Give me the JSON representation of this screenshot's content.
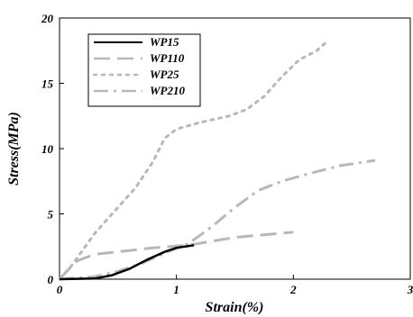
{
  "chart_data": {
    "type": "line",
    "title": "",
    "xlabel": "Strain(%)",
    "ylabel": "Stress(MPa)",
    "xlim": [
      0,
      3
    ],
    "ylim": [
      0,
      20
    ],
    "x_ticks": [
      0,
      1,
      2,
      3
    ],
    "y_ticks": [
      0,
      5,
      10,
      15,
      20
    ],
    "x_tick_labels": [
      "0",
      "1",
      "2",
      "3"
    ],
    "y_tick_labels": [
      "0",
      "5",
      "10",
      "15",
      "20"
    ],
    "grid": false,
    "legend_position": "top-left",
    "series": [
      {
        "name": "WP15",
        "color": "#000000",
        "dash": "solid",
        "points": [
          [
            0,
            0
          ],
          [
            0.3,
            0.05
          ],
          [
            0.45,
            0.3
          ],
          [
            0.6,
            0.8
          ],
          [
            0.75,
            1.5
          ],
          [
            0.9,
            2.1
          ],
          [
            1.0,
            2.4
          ],
          [
            1.15,
            2.6
          ]
        ]
      },
      {
        "name": "WP110",
        "color": "#b8b8b8",
        "dash": "long-dash",
        "points": [
          [
            0,
            0
          ],
          [
            0.05,
            0.5
          ],
          [
            0.15,
            1.4
          ],
          [
            0.3,
            1.9
          ],
          [
            0.5,
            2.1
          ],
          [
            0.8,
            2.4
          ],
          [
            1.1,
            2.6
          ],
          [
            1.5,
            3.2
          ],
          [
            2.0,
            3.6
          ]
        ]
      },
      {
        "name": "WP25",
        "color": "#b8b8b8",
        "dash": "dot",
        "points": [
          [
            0,
            0
          ],
          [
            0.1,
            1.0
          ],
          [
            0.3,
            3.5
          ],
          [
            0.5,
            5.5
          ],
          [
            0.65,
            7.0
          ],
          [
            0.8,
            9.0
          ],
          [
            0.9,
            10.8
          ],
          [
            1.0,
            11.5
          ],
          [
            1.2,
            12.0
          ],
          [
            1.45,
            12.5
          ],
          [
            1.6,
            13.0
          ],
          [
            1.75,
            14.0
          ],
          [
            1.9,
            15.5
          ],
          [
            2.05,
            16.8
          ],
          [
            2.2,
            17.5
          ],
          [
            2.3,
            18.3
          ]
        ]
      },
      {
        "name": "WP210",
        "color": "#b8b8b8",
        "dash": "dash-dot",
        "points": [
          [
            0,
            0
          ],
          [
            0.3,
            0.2
          ],
          [
            0.5,
            0.6
          ],
          [
            0.7,
            1.2
          ],
          [
            0.9,
            2.0
          ],
          [
            1.1,
            2.7
          ],
          [
            1.3,
            4.0
          ],
          [
            1.5,
            5.5
          ],
          [
            1.7,
            6.8
          ],
          [
            1.9,
            7.5
          ],
          [
            2.1,
            8.0
          ],
          [
            2.4,
            8.7
          ],
          [
            2.7,
            9.1
          ]
        ]
      }
    ]
  }
}
